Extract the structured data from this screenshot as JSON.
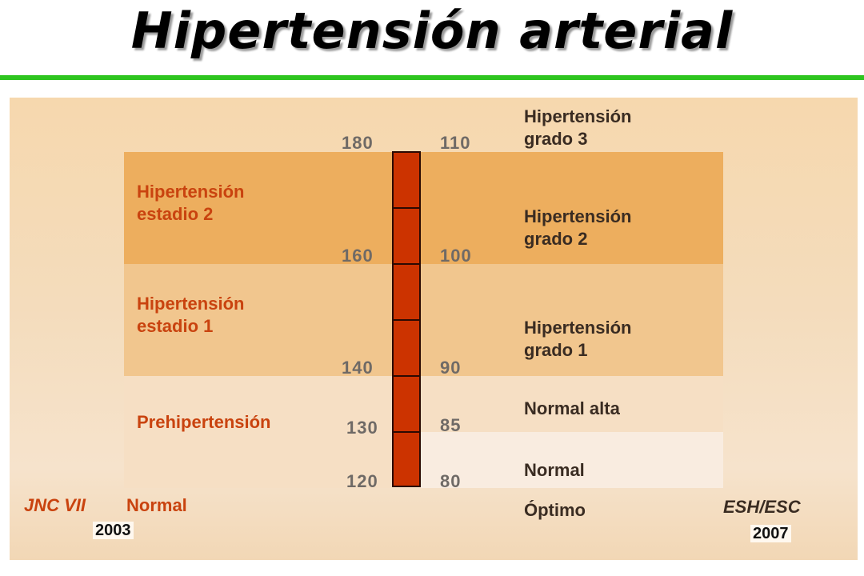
{
  "title": "Hipertensión arterial",
  "left_classification": {
    "name": "JNC VII",
    "year": "2003",
    "categories": {
      "stage2": "Hipertensión\nestadio 2",
      "stage1": "Hipertensión\nestadio 1",
      "prehypertension": "Prehipertensión",
      "normal": "Normal"
    }
  },
  "right_classification": {
    "name": "ESH/ESC",
    "year": "2007",
    "categories": {
      "grade3": "Hipertensión\ngrado 3",
      "grade2": "Hipertensión\ngrado 2",
      "grade1": "Hipertensión\ngrado 1",
      "high_normal": "Normal alta",
      "normal": "Normal",
      "optimal": "Óptimo"
    }
  },
  "systolic_thresholds": [
    "180",
    "160",
    "140",
    "130",
    "120"
  ],
  "diastolic_thresholds": [
    "110",
    "100",
    "90",
    "85",
    "80"
  ],
  "colors": {
    "accent_rule": "#2ec51f",
    "stage2_band": "#edae5e",
    "stage1_band": "#f1c68e",
    "prehypertension_band": "#f6dfc4",
    "normal_band": "#f9ece0",
    "column": "#cc3300",
    "left_label": "#c9430f"
  }
}
